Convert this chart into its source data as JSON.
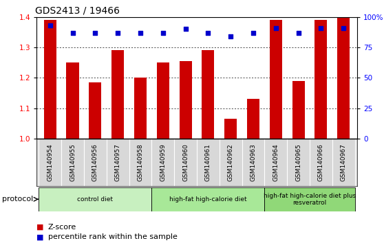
{
  "title": "GDS2413 / 19466",
  "samples": [
    "GSM140954",
    "GSM140955",
    "GSM140956",
    "GSM140957",
    "GSM140958",
    "GSM140959",
    "GSM140960",
    "GSM140961",
    "GSM140962",
    "GSM140963",
    "GSM140964",
    "GSM140965",
    "GSM140966",
    "GSM140967"
  ],
  "zscore": [
    1.39,
    1.25,
    1.185,
    1.29,
    1.2,
    1.25,
    1.255,
    1.29,
    1.065,
    1.13,
    1.39,
    1.19,
    1.39,
    1.4
  ],
  "percentile": [
    93,
    87,
    87,
    87,
    87,
    87,
    90,
    87,
    84,
    87,
    91,
    87,
    91,
    91
  ],
  "bar_color": "#cc0000",
  "dot_color": "#0000cc",
  "ylim_left": [
    1.0,
    1.4
  ],
  "ylim_right": [
    0,
    100
  ],
  "yticks_left": [
    1.0,
    1.1,
    1.2,
    1.3,
    1.4
  ],
  "yticks_right": [
    0,
    25,
    50,
    75,
    100
  ],
  "ytick_right_labels": [
    "0",
    "25",
    "50",
    "75",
    "100%"
  ],
  "groups": [
    {
      "label": "control diet",
      "start": 0,
      "end": 4,
      "color": "#c8f0c0"
    },
    {
      "label": "high-fat high-calorie diet",
      "start": 5,
      "end": 9,
      "color": "#a8e898"
    },
    {
      "label": "high-fat high-calorie diet plus\nresveratrol",
      "start": 10,
      "end": 13,
      "color": "#90d878"
    }
  ],
  "protocol_label": "protocol",
  "legend_zscore": "Z-score",
  "legend_percentile": "percentile rank within the sample",
  "title_fontsize": 10,
  "tick_fontsize": 7.5,
  "label_fontsize": 6.5
}
